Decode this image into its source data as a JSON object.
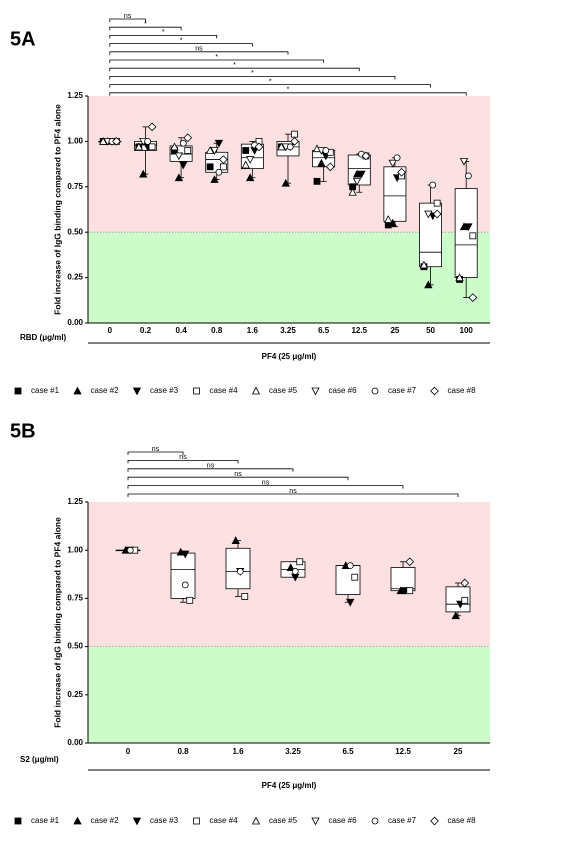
{
  "chart_data": [
    {
      "type": "box",
      "panel": "5A",
      "y_label": "Fold increase of IgG binding compared to PF4 alone",
      "x_label": "RBD (μg/ml)",
      "group_label": "PF4 (25 μg/ml)",
      "categories": [
        "0",
        "0.2",
        "0.4",
        "0.8",
        "1.6",
        "3.25",
        "6.5",
        "12.5",
        "25",
        "50",
        "100"
      ],
      "ylim": [
        0,
        1.25
      ],
      "yticks": [
        {
          "value": 0,
          "label": "0.00"
        },
        {
          "value": 0.25,
          "label": "0.25"
        },
        {
          "value": 0.5,
          "label": "0.50"
        },
        {
          "value": 0.75,
          "label": "0.75"
        },
        {
          "value": 1,
          "label": "1.00"
        },
        {
          "value": 1.25,
          "label": "1.25"
        }
      ],
      "threshold": 0.5,
      "upper_color": "#fde0e1",
      "lower_color": "#ccfcc9",
      "significance": [
        null,
        "ns",
        "*",
        "*",
        "*",
        "ns",
        "*",
        "*",
        "*",
        "*",
        "*"
      ],
      "boxes": [
        {
          "min": 1,
          "q1": 1,
          "median": 1,
          "q3": 1,
          "max": 1
        },
        {
          "min": 0.82,
          "q1": 0.95,
          "median": 0.98,
          "q3": 1.0,
          "max": 1.08
        },
        {
          "min": 0.8,
          "q1": 0.89,
          "median": 0.93,
          "q3": 0.975,
          "max": 1.02
        },
        {
          "min": 0.79,
          "q1": 0.83,
          "median": 0.9,
          "q3": 0.94,
          "max": 0.99
        },
        {
          "min": 0.8,
          "q1": 0.85,
          "median": 0.91,
          "q3": 0.985,
          "max": 1.0
        },
        {
          "min": 0.77,
          "q1": 0.92,
          "median": 0.97,
          "q3": 1.0,
          "max": 1.04
        },
        {
          "min": 0.78,
          "q1": 0.86,
          "median": 0.91,
          "q3": 0.95,
          "max": 0.96
        },
        {
          "min": 0.72,
          "q1": 0.76,
          "median": 0.85,
          "q3": 0.925,
          "max": 0.93
        },
        {
          "min": 0.53,
          "q1": 0.56,
          "median": 0.7,
          "q3": 0.86,
          "max": 0.91
        },
        {
          "min": 0.21,
          "q1": 0.31,
          "median": 0.39,
          "q3": 0.66,
          "max": 0.76
        },
        {
          "min": 0.14,
          "q1": 0.25,
          "median": 0.43,
          "q3": 0.74,
          "max": 0.89
        }
      ],
      "series": [
        {
          "name": "case #1",
          "marker": "square",
          "filled": true,
          "color": "#000000",
          "values": [
            1,
            0.97,
            0.95,
            0.86,
            0.95,
            0.97,
            0.78,
            0.75,
            0.54,
            0.31,
            0.24
          ]
        },
        {
          "name": "case #2",
          "marker": "triangle-up",
          "filled": true,
          "color": "#000000",
          "values": [
            1,
            0.82,
            0.8,
            0.79,
            0.8,
            0.77,
            0.88,
            0.82,
            0.55,
            0.21,
            0.53
          ]
        },
        {
          "name": "case #3",
          "marker": "triangle-down",
          "filled": true,
          "color": "#000000",
          "values": [
            1,
            0.97,
            0.87,
            0.99,
            0.95,
            0.97,
            0.92,
            0.82,
            0.8,
            0.59,
            0.53
          ]
        },
        {
          "name": "case #4",
          "marker": "square",
          "filled": false,
          "color": "#000000",
          "values": [
            1,
            0.97,
            0.95,
            0.86,
            1.0,
            1.04,
            0.94,
            0.92,
            0.81,
            0.66,
            0.48
          ]
        },
        {
          "name": "case #5",
          "marker": "triangle-up",
          "filled": false,
          "color": "#000000",
          "values": [
            1,
            0.97,
            0.97,
            0.95,
            0.87,
            0.97,
            0.96,
            0.72,
            0.57,
            0.32,
            0.25
          ]
        },
        {
          "name": "case #6",
          "marker": "triangle-down",
          "filled": false,
          "color": "#000000",
          "values": [
            1,
            1.0,
            0.92,
            0.95,
            0.9,
            0.97,
            0.95,
            0.78,
            0.88,
            0.6,
            0.89
          ]
        },
        {
          "name": "case #7",
          "marker": "circle",
          "filled": false,
          "color": "#000000",
          "values": [
            1,
            1.0,
            0.99,
            0.83,
            0.98,
            0.97,
            0.95,
            0.93,
            0.91,
            0.76,
            0.81
          ]
        },
        {
          "name": "case #8",
          "marker": "diamond",
          "filled": false,
          "color": "#000000",
          "values": [
            1,
            1.08,
            1.02,
            0.9,
            0.97,
            1.0,
            0.86,
            0.92,
            0.83,
            0.6,
            0.14
          ]
        }
      ]
    },
    {
      "type": "box",
      "panel": "5B",
      "y_label": "Fold increase of IgG binding compared to PF4 alone",
      "x_label": "S2 (μg/ml)",
      "group_label": "PF4 (25 μg/ml)",
      "categories": [
        "0",
        "0.8",
        "1.6",
        "3.25",
        "6.5",
        "12.5",
        "25"
      ],
      "ylim": [
        0,
        1.25
      ],
      "yticks": [
        {
          "value": 0,
          "label": "0.00"
        },
        {
          "value": 0.25,
          "label": "0.25"
        },
        {
          "value": 0.5,
          "label": "0.50"
        },
        {
          "value": 0.75,
          "label": "0.75"
        },
        {
          "value": 1,
          "label": "1.00"
        },
        {
          "value": 1.25,
          "label": "1.25"
        }
      ],
      "threshold": 0.5,
      "upper_color": "#fde0e1",
      "lower_color": "#ccfcc9",
      "significance": [
        null,
        "ns",
        "ns",
        "ns",
        "ns",
        "ns",
        "ns"
      ],
      "boxes": [
        {
          "min": 1,
          "q1": 1,
          "median": 1,
          "q3": 1,
          "max": 1
        },
        {
          "min": 0.73,
          "q1": 0.75,
          "median": 0.9,
          "q3": 0.985,
          "max": 0.99
        },
        {
          "min": 0.76,
          "q1": 0.8,
          "median": 0.89,
          "q3": 1.01,
          "max": 1.05
        },
        {
          "min": 0.86,
          "q1": 0.86,
          "median": 0.9,
          "q3": 0.94,
          "max": 0.94
        },
        {
          "min": 0.73,
          "q1": 0.77,
          "median": 0.92,
          "q3": 0.92,
          "max": 0.92
        },
        {
          "min": 0.79,
          "q1": 0.79,
          "median": 0.8,
          "q3": 0.91,
          "max": 0.94
        },
        {
          "min": 0.66,
          "q1": 0.68,
          "median": 0.72,
          "q3": 0.81,
          "max": 0.83
        }
      ],
      "series": [
        {
          "name": "case #1",
          "marker": "square",
          "filled": true,
          "color": "#000000",
          "values": [
            null,
            null,
            null,
            null,
            null,
            null,
            null
          ]
        },
        {
          "name": "case #2",
          "marker": "triangle-up",
          "filled": true,
          "color": "#000000",
          "values": [
            1,
            0.99,
            1.05,
            0.91,
            0.92,
            0.79,
            0.66
          ]
        },
        {
          "name": "case #3",
          "marker": "triangle-down",
          "filled": true,
          "color": "#000000",
          "values": [
            1,
            0.98,
            0.89,
            0.86,
            0.73,
            0.79,
            0.72
          ]
        },
        {
          "name": "case #4",
          "marker": "square",
          "filled": false,
          "color": "#000000",
          "values": [
            1,
            0.74,
            0.76,
            0.94,
            0.86,
            0.79,
            0.74
          ]
        },
        {
          "name": "case #5",
          "marker": "triangle-up",
          "filled": false,
          "color": "#000000",
          "values": [
            null,
            null,
            null,
            null,
            null,
            null,
            null
          ]
        },
        {
          "name": "case #6",
          "marker": "triangle-down",
          "filled": false,
          "color": "#000000",
          "values": [
            null,
            null,
            null,
            null,
            null,
            null,
            null
          ]
        },
        {
          "name": "case #7",
          "marker": "circle",
          "filled": false,
          "color": "#000000",
          "values": [
            1,
            0.82,
            0.89,
            0.89,
            0.92,
            null,
            null
          ]
        },
        {
          "name": "case #8",
          "marker": "diamond",
          "filled": false,
          "color": "#000000",
          "values": [
            null,
            null,
            null,
            null,
            null,
            0.94,
            0.83
          ]
        }
      ]
    }
  ]
}
